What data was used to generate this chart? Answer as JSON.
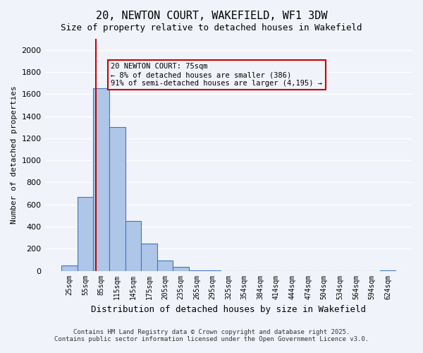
{
  "title1": "20, NEWTON COURT, WAKEFIELD, WF1 3DW",
  "title2": "Size of property relative to detached houses in Wakefield",
  "xlabel": "Distribution of detached houses by size in Wakefield",
  "ylabel": "Number of detached properties",
  "categories": [
    "25sqm",
    "55sqm",
    "85sqm",
    "115sqm",
    "145sqm",
    "175sqm",
    "205sqm",
    "235sqm",
    "265sqm",
    "295sqm",
    "325sqm",
    "354sqm",
    "384sqm",
    "414sqm",
    "444sqm",
    "474sqm",
    "504sqm",
    "534sqm",
    "564sqm",
    "594sqm",
    "624sqm"
  ],
  "values": [
    50,
    670,
    1650,
    1300,
    450,
    245,
    90,
    35,
    5,
    5,
    0,
    0,
    0,
    0,
    0,
    0,
    0,
    0,
    0,
    0,
    5
  ],
  "bar_color": "#aec6e8",
  "bar_edge_color": "#4472c4",
  "ylim": [
    0,
    2100
  ],
  "yticks": [
    0,
    200,
    400,
    600,
    800,
    1000,
    1200,
    1400,
    1600,
    1800,
    2000
  ],
  "vline_x": 75,
  "vline_color": "#cc0000",
  "annotation_text": "20 NEWTON COURT: 75sqm\n← 8% of detached houses are smaller (386)\n91% of semi-detached houses are larger (4,195) →",
  "annotation_box_color": "#cc0000",
  "footnote1": "Contains HM Land Registry data © Crown copyright and database right 2025.",
  "footnote2": "Contains public sector information licensed under the Open Government Licence v3.0.",
  "bg_color": "#f0f4fa",
  "grid_color": "#ffffff",
  "bar_width": 1.0
}
